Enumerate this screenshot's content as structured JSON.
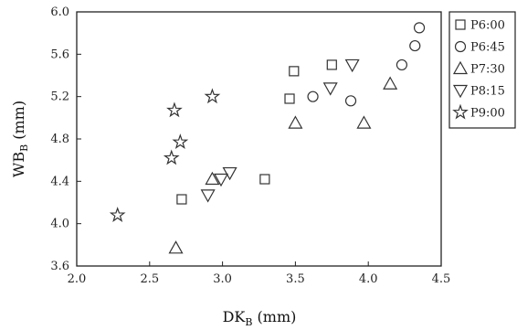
{
  "chart_data": {
    "type": "scatter",
    "xlabel": "DK",
    "xlabel_sub": "B",
    "xlabel_unit": " (mm)",
    "ylabel": "WB",
    "ylabel_sub": "B",
    "ylabel_unit": " (mm)",
    "xlim": [
      2.0,
      4.5
    ],
    "ylim": [
      3.6,
      6.0
    ],
    "xticks": [
      2.0,
      2.5,
      3.0,
      3.5,
      4.0,
      4.5
    ],
    "xtick_labels": [
      "2.0",
      "2.5",
      "3.0",
      "3.5",
      "4.0",
      "4.5"
    ],
    "yticks": [
      3.6,
      4.0,
      4.4,
      4.8,
      5.2,
      5.6,
      6.0
    ],
    "ytick_labels": [
      "3.6",
      "4.0",
      "4.4",
      "4.8",
      "5.2",
      "5.6",
      "6.0"
    ],
    "grid": false,
    "legend_position": "right",
    "series": [
      {
        "name": "P6:00",
        "marker": "square",
        "x": [
          2.72,
          3.29,
          3.46,
          3.49,
          3.75
        ],
        "y": [
          4.23,
          4.42,
          5.18,
          5.44,
          5.5
        ]
      },
      {
        "name": "P6:45",
        "marker": "circle",
        "x": [
          3.62,
          3.88,
          4.23,
          4.32,
          4.35
        ],
        "y": [
          5.2,
          5.16,
          5.5,
          5.68,
          5.85
        ]
      },
      {
        "name": "P7:30",
        "marker": "triangle-up",
        "x": [
          2.68,
          2.93,
          3.5,
          3.97,
          4.15
        ],
        "y": [
          3.77,
          4.42,
          4.95,
          4.95,
          5.32
        ]
      },
      {
        "name": "P8:15",
        "marker": "triangle-down",
        "x": [
          2.9,
          2.99,
          3.05,
          3.74,
          3.89
        ],
        "y": [
          4.27,
          4.42,
          4.48,
          5.28,
          5.5
        ]
      },
      {
        "name": "P9:00",
        "marker": "star",
        "x": [
          2.28,
          2.65,
          2.67,
          2.71,
          2.93
        ],
        "y": [
          4.08,
          4.62,
          5.07,
          4.77,
          5.2
        ]
      }
    ]
  }
}
